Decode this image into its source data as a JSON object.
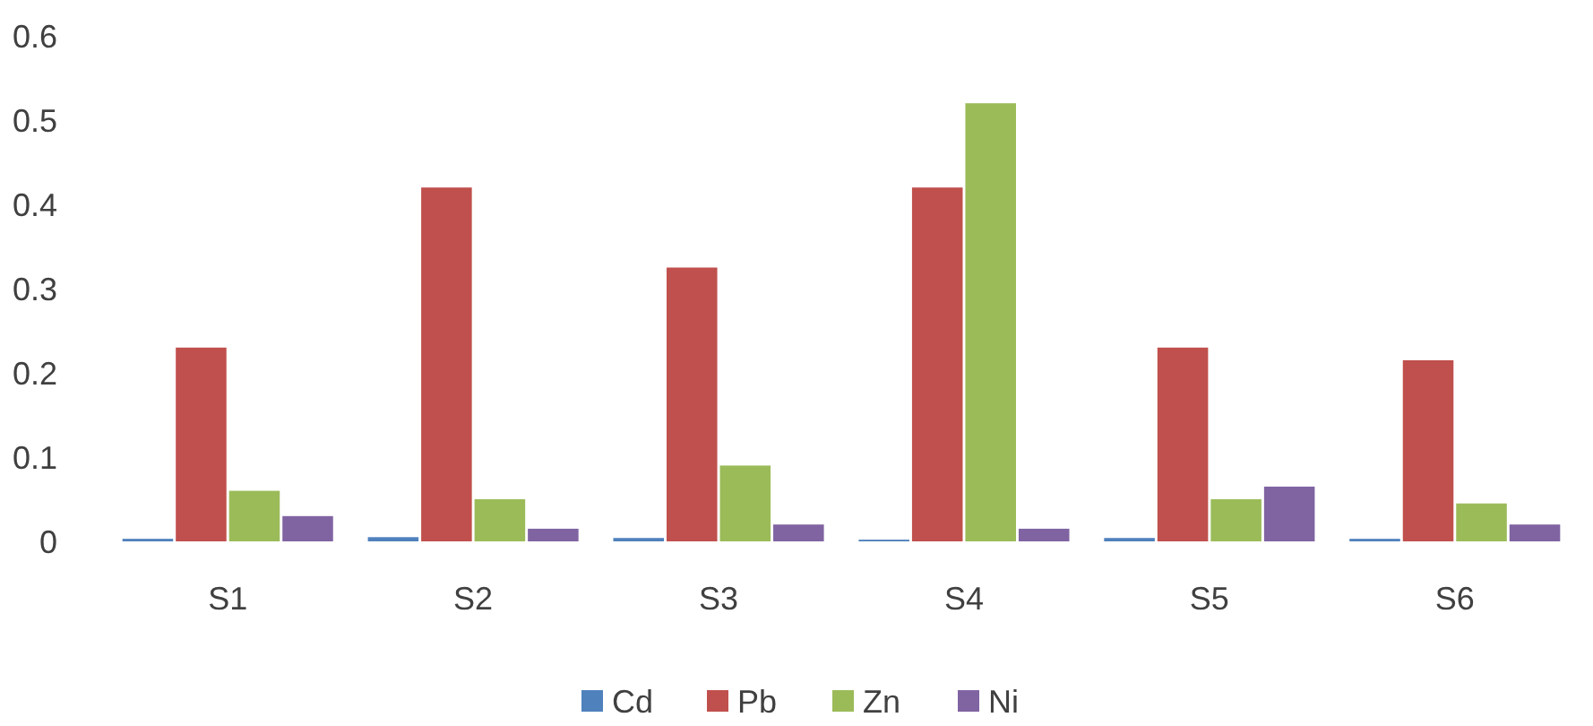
{
  "chart_data": {
    "type": "bar",
    "categories": [
      "S1",
      "S2",
      "S3",
      "S4",
      "S5",
      "S6"
    ],
    "series": [
      {
        "name": "Cd",
        "color": "#4f81bd",
        "values": [
          0.003,
          0.005,
          0.004,
          0.002,
          0.004,
          0.003
        ]
      },
      {
        "name": "Pb",
        "color": "#c0504d",
        "values": [
          0.23,
          0.42,
          0.325,
          0.42,
          0.23,
          0.215
        ]
      },
      {
        "name": "Zn",
        "color": "#9bbb59",
        "values": [
          0.06,
          0.05,
          0.09,
          0.52,
          0.05,
          0.045
        ]
      },
      {
        "name": "Ni",
        "color": "#8064a2",
        "values": [
          0.03,
          0.015,
          0.02,
          0.015,
          0.065,
          0.02
        ]
      }
    ],
    "ylim": [
      0,
      0.6
    ],
    "yticks": [
      {
        "value": 0,
        "label": "0"
      },
      0.1,
      0.2,
      0.3,
      0.4,
      0.5,
      0.6
    ],
    "grid": false,
    "legend": "bottom"
  }
}
